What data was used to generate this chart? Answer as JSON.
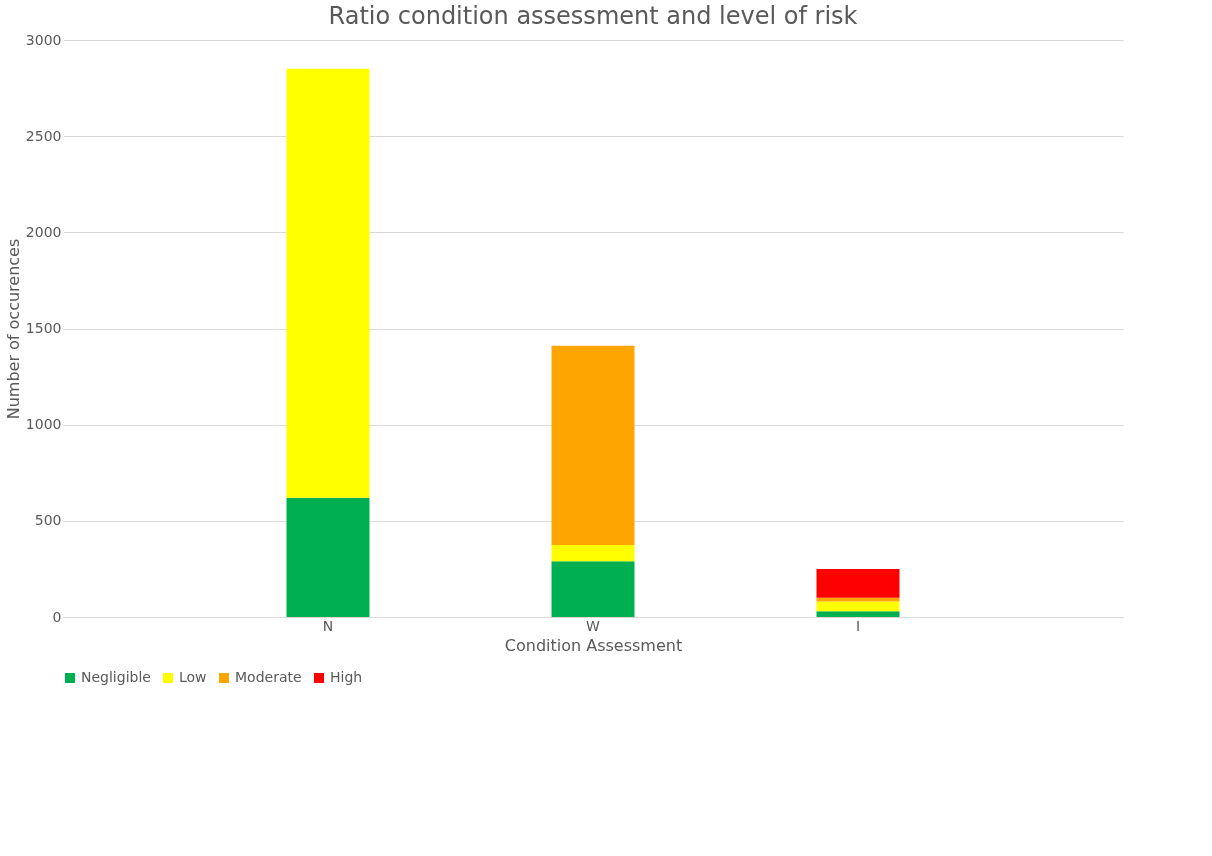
{
  "chart_data": {
    "type": "bar",
    "title": "Ratio condition assessment and level of risk",
    "xlabel": "Condition Assessment",
    "ylabel": "Number of occurences",
    "categories": [
      "N",
      "W",
      "I"
    ],
    "stacked": true,
    "series": [
      {
        "name": "Negligible",
        "color": "#00b050",
        "values": [
          620,
          290,
          30
        ]
      },
      {
        "name": "Low",
        "color": "#ffff00",
        "values": [
          2230,
          85,
          50
        ]
      },
      {
        "name": "Moderate",
        "color": "#ffa500",
        "values": [
          0,
          1035,
          20
        ]
      },
      {
        "name": "High",
        "color": "#ff0000",
        "values": [
          0,
          0,
          150
        ]
      }
    ],
    "ylim": [
      0,
      3000
    ],
    "yticks": [
      0,
      500,
      1000,
      1500,
      2000,
      2500,
      3000
    ],
    "grid": "y",
    "legend": "bottom"
  }
}
